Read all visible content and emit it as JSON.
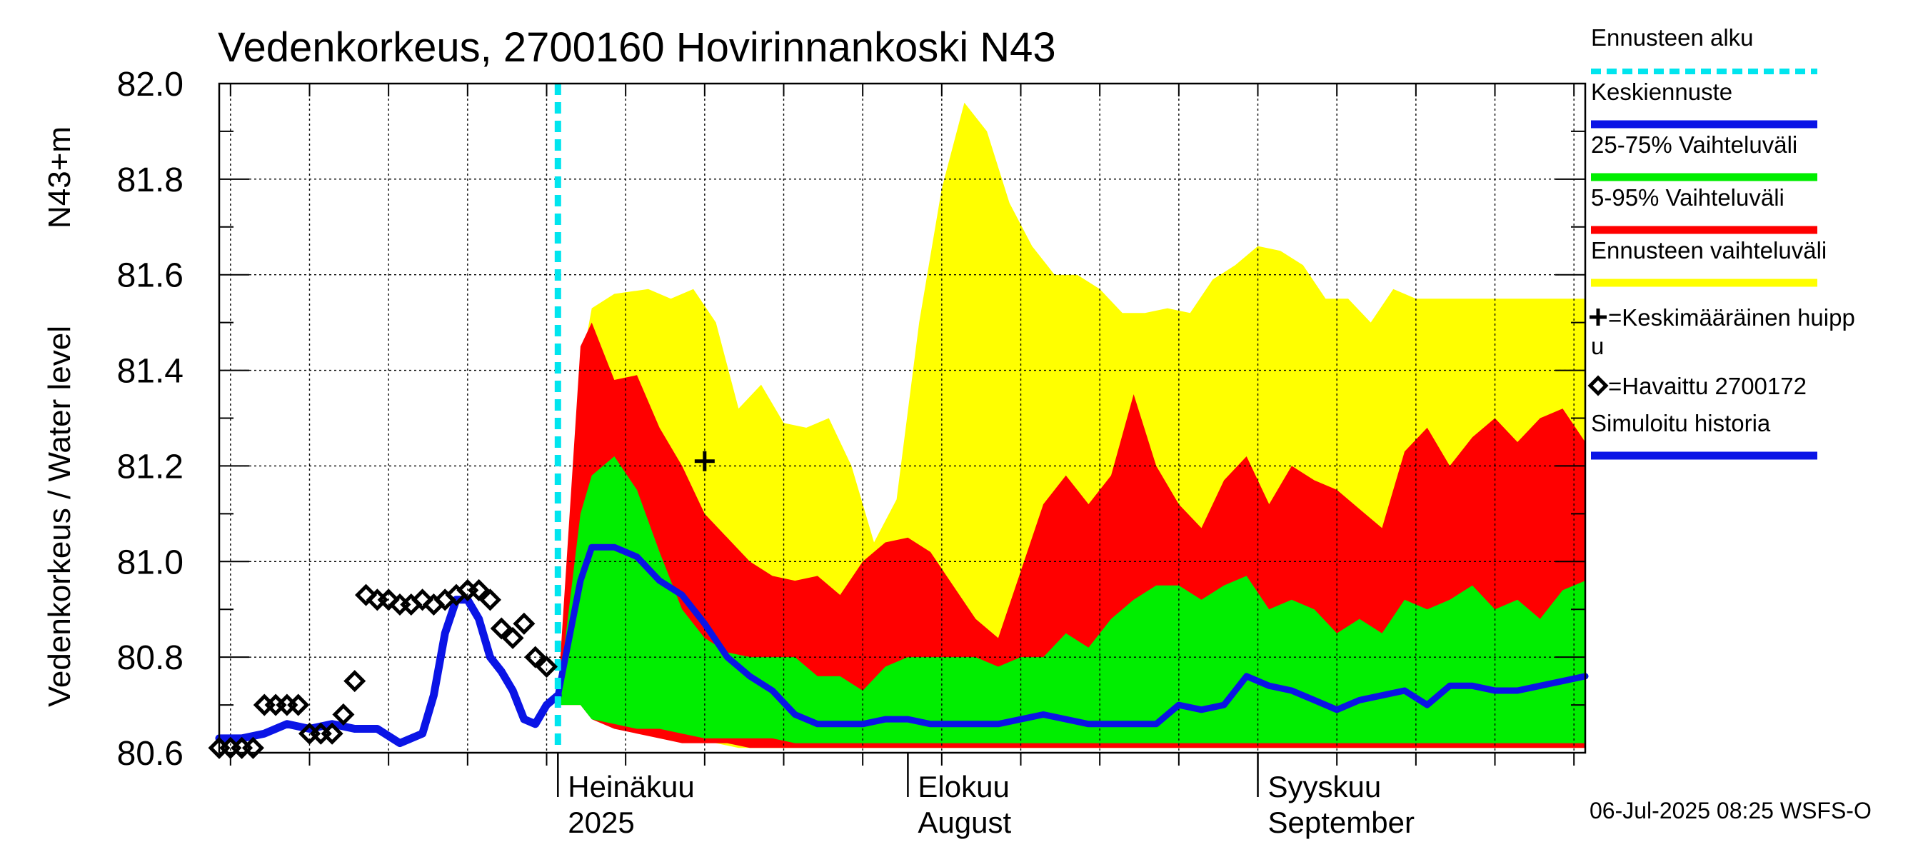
{
  "chart_data": {
    "type": "area",
    "title": "Vedenkorkeus, 2700160 Hovirinnankoski N43",
    "ylabel_left": "Vedenkorkeus / Water level",
    "ylabel_right": "N43+m",
    "ylim": [
      80.6,
      82.0
    ],
    "yticks": [
      "80.6",
      "80.8",
      "81.0",
      "81.2",
      "81.4",
      "81.6",
      "81.8",
      "82.0"
    ],
    "xlim": [
      "2025-06-01",
      "2025-09-30"
    ],
    "x_month_labels": [
      {
        "date": "2025-07-01",
        "line1": "Heinäkuu",
        "line2": "2025"
      },
      {
        "date": "2025-08-01",
        "line1": "Elokuu",
        "line2": "August"
      },
      {
        "date": "2025-09-01",
        "line1": "Syyskuu",
        "line2": "September"
      }
    ],
    "grid": true,
    "forecast_start": "2025-07-01",
    "colors": {
      "forecast_start": "#00e5ee",
      "mean_forecast": "#0a14e6",
      "band_25_75": "#00ee00",
      "band_5_95": "#ff0000",
      "band_full": "#ffff00",
      "observed": "#000000",
      "simulated": "#0a14e6"
    },
    "legend": {
      "placement": "right",
      "items": [
        {
          "label": "Ennusteen alku",
          "kind": "dashed",
          "color": "#00e5ee"
        },
        {
          "label": "Keskiennuste",
          "kind": "line",
          "color": "#0a14e6"
        },
        {
          "label": "25-75% Vaihteluväli",
          "kind": "line",
          "color": "#00ee00"
        },
        {
          "label": "5-95% Vaihteluväli",
          "kind": "line",
          "color": "#ff0000"
        },
        {
          "label": "Ennusteen vaihteluväli",
          "kind": "line",
          "color": "#ffff00"
        },
        {
          "label": "=Keskimääräinen huipp",
          "label2": "u",
          "kind": "plus"
        },
        {
          "label": "=Havaittu 2700172",
          "kind": "diamond"
        },
        {
          "label": "Simuloitu historia",
          "kind": "line",
          "color": "#0a14e6"
        }
      ]
    },
    "footer": "06-Jul-2025 08:25 WSFS-O",
    "series": {
      "band_full": {
        "x": [
          "2025-07-01",
          "2025-07-03",
          "2025-07-04",
          "2025-07-06",
          "2025-07-09",
          "2025-07-11",
          "2025-07-13",
          "2025-07-15",
          "2025-07-17",
          "2025-07-19",
          "2025-07-21",
          "2025-07-23",
          "2025-07-25",
          "2025-07-27",
          "2025-07-29",
          "2025-07-31",
          "2025-08-02",
          "2025-08-04",
          "2025-08-06",
          "2025-08-08",
          "2025-08-10",
          "2025-08-12",
          "2025-08-14",
          "2025-08-16",
          "2025-08-18",
          "2025-08-20",
          "2025-08-22",
          "2025-08-24",
          "2025-08-26",
          "2025-08-28",
          "2025-08-30",
          "2025-09-01",
          "2025-09-03",
          "2025-09-05",
          "2025-09-07",
          "2025-09-09",
          "2025-09-11",
          "2025-09-13",
          "2025-09-15",
          "2025-09-17",
          "2025-09-19",
          "2025-09-21",
          "2025-09-23",
          "2025-09-25",
          "2025-09-27",
          "2025-09-29",
          "2025-09-30"
        ],
        "upper": [
          80.72,
          81.4,
          81.53,
          81.56,
          81.57,
          81.55,
          81.57,
          81.5,
          81.32,
          81.37,
          81.29,
          81.28,
          81.3,
          81.2,
          81.04,
          81.13,
          81.5,
          81.78,
          81.96,
          81.9,
          81.75,
          81.66,
          81.6,
          81.6,
          81.57,
          81.52,
          81.52,
          81.53,
          81.52,
          81.59,
          81.62,
          81.66,
          81.65,
          81.62,
          81.55,
          81.55,
          81.5,
          81.57,
          81.55,
          81.55,
          81.55,
          81.55,
          81.55,
          81.55,
          81.55,
          81.55,
          81.55
        ],
        "lower": [
          80.7,
          80.7,
          80.68,
          80.67,
          80.66,
          80.64,
          80.63,
          80.62,
          80.61,
          80.61,
          80.61,
          80.61,
          80.61,
          80.61,
          80.61,
          80.61,
          80.61,
          80.61,
          80.61,
          80.61,
          80.61,
          80.61,
          80.61,
          80.61,
          80.61,
          80.61,
          80.61,
          80.61,
          80.61,
          80.61,
          80.61,
          80.61,
          80.61,
          80.61,
          80.61,
          80.61,
          80.61,
          80.61,
          80.61,
          80.61,
          80.61,
          80.61,
          80.61,
          80.61,
          80.61,
          80.61,
          80.61
        ]
      },
      "band_5_95": {
        "x": [
          "2025-07-01",
          "2025-07-03",
          "2025-07-04",
          "2025-07-06",
          "2025-07-08",
          "2025-07-10",
          "2025-07-12",
          "2025-07-14",
          "2025-07-16",
          "2025-07-18",
          "2025-07-20",
          "2025-07-22",
          "2025-07-24",
          "2025-07-26",
          "2025-07-28",
          "2025-07-30",
          "2025-08-01",
          "2025-08-03",
          "2025-08-05",
          "2025-08-07",
          "2025-08-09",
          "2025-08-11",
          "2025-08-13",
          "2025-08-15",
          "2025-08-17",
          "2025-08-19",
          "2025-08-21",
          "2025-08-23",
          "2025-08-25",
          "2025-08-27",
          "2025-08-29",
          "2025-08-31",
          "2025-09-02",
          "2025-09-04",
          "2025-09-06",
          "2025-09-08",
          "2025-09-10",
          "2025-09-12",
          "2025-09-14",
          "2025-09-16",
          "2025-09-18",
          "2025-09-20",
          "2025-09-22",
          "2025-09-24",
          "2025-09-26",
          "2025-09-28",
          "2025-09-30"
        ],
        "upper": [
          80.72,
          81.45,
          81.5,
          81.38,
          81.39,
          81.28,
          81.2,
          81.1,
          81.05,
          81.0,
          80.97,
          80.96,
          80.97,
          80.93,
          81.0,
          81.04,
          81.05,
          81.02,
          80.95,
          80.88,
          80.84,
          80.98,
          81.12,
          81.18,
          81.12,
          81.18,
          81.35,
          81.2,
          81.12,
          81.07,
          81.17,
          81.22,
          81.12,
          81.2,
          81.17,
          81.15,
          81.11,
          81.07,
          81.23,
          81.28,
          81.2,
          81.26,
          81.3,
          81.25,
          81.3,
          81.32,
          81.25
        ],
        "lower": [
          80.7,
          80.7,
          80.67,
          80.65,
          80.64,
          80.63,
          80.62,
          80.62,
          80.62,
          80.61,
          80.61,
          80.61,
          80.61,
          80.61,
          80.61,
          80.61,
          80.61,
          80.61,
          80.61,
          80.61,
          80.61,
          80.61,
          80.61,
          80.61,
          80.61,
          80.61,
          80.61,
          80.61,
          80.61,
          80.61,
          80.61,
          80.61,
          80.61,
          80.61,
          80.61,
          80.61,
          80.61,
          80.61,
          80.61,
          80.61,
          80.61,
          80.61,
          80.61,
          80.61,
          80.61,
          80.61,
          80.61
        ]
      },
      "band_25_75": {
        "x": [
          "2025-07-01",
          "2025-07-03",
          "2025-07-04",
          "2025-07-06",
          "2025-07-08",
          "2025-07-10",
          "2025-07-12",
          "2025-07-14",
          "2025-07-16",
          "2025-07-18",
          "2025-07-20",
          "2025-07-22",
          "2025-07-24",
          "2025-07-26",
          "2025-07-28",
          "2025-07-30",
          "2025-08-01",
          "2025-08-03",
          "2025-08-05",
          "2025-08-07",
          "2025-08-09",
          "2025-08-11",
          "2025-08-13",
          "2025-08-15",
          "2025-08-17",
          "2025-08-19",
          "2025-08-21",
          "2025-08-23",
          "2025-08-25",
          "2025-08-27",
          "2025-08-29",
          "2025-08-31",
          "2025-09-02",
          "2025-09-04",
          "2025-09-06",
          "2025-09-08",
          "2025-09-10",
          "2025-09-12",
          "2025-09-14",
          "2025-09-16",
          "2025-09-18",
          "2025-09-20",
          "2025-09-22",
          "2025-09-24",
          "2025-09-26",
          "2025-09-28",
          "2025-09-30"
        ],
        "upper": [
          80.71,
          81.1,
          81.18,
          81.22,
          81.15,
          81.02,
          80.9,
          80.84,
          80.81,
          80.8,
          80.8,
          80.8,
          80.76,
          80.76,
          80.73,
          80.78,
          80.8,
          80.8,
          80.8,
          80.8,
          80.78,
          80.8,
          80.8,
          80.85,
          80.82,
          80.88,
          80.92,
          80.95,
          80.95,
          80.92,
          80.95,
          80.97,
          80.9,
          80.92,
          80.9,
          80.85,
          80.88,
          80.85,
          80.92,
          80.9,
          80.92,
          80.95,
          80.9,
          80.92,
          80.88,
          80.94,
          80.96
        ],
        "lower": [
          80.7,
          80.7,
          80.67,
          80.66,
          80.65,
          80.65,
          80.64,
          80.63,
          80.63,
          80.63,
          80.63,
          80.62,
          80.62,
          80.62,
          80.62,
          80.62,
          80.62,
          80.62,
          80.62,
          80.62,
          80.62,
          80.62,
          80.62,
          80.62,
          80.62,
          80.62,
          80.62,
          80.62,
          80.62,
          80.62,
          80.62,
          80.62,
          80.62,
          80.62,
          80.62,
          80.62,
          80.62,
          80.62,
          80.62,
          80.62,
          80.62,
          80.62,
          80.62,
          80.62,
          80.62,
          80.62,
          80.62
        ]
      },
      "mean_forecast": {
        "x": [
          "2025-07-01",
          "2025-07-03",
          "2025-07-04",
          "2025-07-06",
          "2025-07-08",
          "2025-07-10",
          "2025-07-12",
          "2025-07-14",
          "2025-07-16",
          "2025-07-18",
          "2025-07-20",
          "2025-07-22",
          "2025-07-24",
          "2025-07-26",
          "2025-07-28",
          "2025-07-30",
          "2025-08-01",
          "2025-08-03",
          "2025-08-05",
          "2025-08-07",
          "2025-08-09",
          "2025-08-11",
          "2025-08-13",
          "2025-08-15",
          "2025-08-17",
          "2025-08-19",
          "2025-08-21",
          "2025-08-23",
          "2025-08-25",
          "2025-08-27",
          "2025-08-29",
          "2025-08-31",
          "2025-09-02",
          "2025-09-04",
          "2025-09-06",
          "2025-09-08",
          "2025-09-10",
          "2025-09-12",
          "2025-09-14",
          "2025-09-16",
          "2025-09-18",
          "2025-09-20",
          "2025-09-22",
          "2025-09-24",
          "2025-09-26",
          "2025-09-28",
          "2025-09-30"
        ],
        "values": [
          80.72,
          80.96,
          81.03,
          81.03,
          81.01,
          80.96,
          80.93,
          80.87,
          80.8,
          80.76,
          80.73,
          80.68,
          80.66,
          80.66,
          80.66,
          80.67,
          80.67,
          80.66,
          80.66,
          80.66,
          80.66,
          80.67,
          80.68,
          80.67,
          80.66,
          80.66,
          80.66,
          80.66,
          80.7,
          80.69,
          80.7,
          80.76,
          80.74,
          80.73,
          80.71,
          80.69,
          80.71,
          80.72,
          80.73,
          80.7,
          80.74,
          80.74,
          80.73,
          80.73,
          80.74,
          80.75,
          80.76
        ]
      },
      "simulated_history": {
        "x": [
          "2025-06-01",
          "2025-06-03",
          "2025-06-05",
          "2025-06-07",
          "2025-06-09",
          "2025-06-11",
          "2025-06-13",
          "2025-06-15",
          "2025-06-17",
          "2025-06-19",
          "2025-06-20",
          "2025-06-21",
          "2025-06-22",
          "2025-06-23",
          "2025-06-24",
          "2025-06-25",
          "2025-06-26",
          "2025-06-27",
          "2025-06-28",
          "2025-06-29",
          "2025-06-30",
          "2025-07-01"
        ],
        "values": [
          80.63,
          80.63,
          80.64,
          80.66,
          80.65,
          80.66,
          80.65,
          80.65,
          80.62,
          80.64,
          80.72,
          80.85,
          80.92,
          80.92,
          80.88,
          80.8,
          80.77,
          80.73,
          80.67,
          80.66,
          80.7,
          80.72
        ]
      },
      "observed": {
        "x": [
          "2025-06-01",
          "2025-06-02",
          "2025-06-03",
          "2025-06-04",
          "2025-06-05",
          "2025-06-06",
          "2025-06-07",
          "2025-06-08",
          "2025-06-09",
          "2025-06-10",
          "2025-06-11",
          "2025-06-12",
          "2025-06-13",
          "2025-06-14",
          "2025-06-15",
          "2025-06-16",
          "2025-06-17",
          "2025-06-18",
          "2025-06-19",
          "2025-06-20",
          "2025-06-21",
          "2025-06-22",
          "2025-06-23",
          "2025-06-24",
          "2025-06-25",
          "2025-06-26",
          "2025-06-27",
          "2025-06-28",
          "2025-06-29",
          "2025-06-30"
        ],
        "values": [
          80.61,
          80.61,
          80.61,
          80.61,
          80.7,
          80.7,
          80.7,
          80.7,
          80.64,
          80.64,
          80.64,
          80.68,
          80.75,
          80.93,
          80.92,
          80.92,
          80.91,
          80.91,
          80.92,
          80.91,
          80.92,
          80.93,
          80.94,
          80.94,
          80.92,
          80.86,
          80.84,
          80.87,
          80.8,
          80.78
        ]
      },
      "average_peak": {
        "x": "2025-07-14",
        "y": 81.21
      }
    }
  }
}
